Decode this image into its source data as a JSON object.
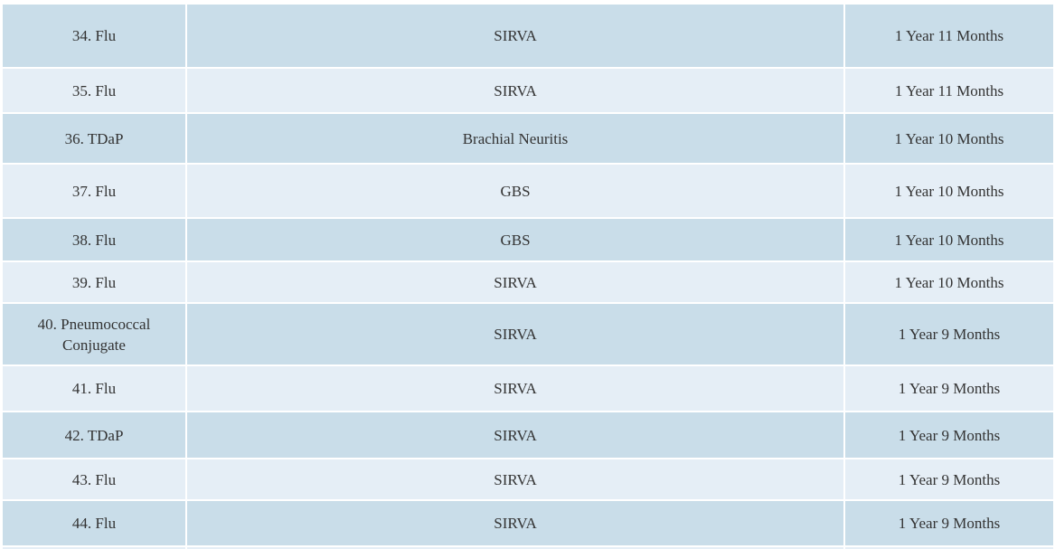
{
  "table": {
    "rows": [
      [
        "34. Flu",
        "SIRVA",
        "1 Year 11 Months"
      ],
      [
        "35. Flu",
        "SIRVA",
        "1 Year 11 Months"
      ],
      [
        "36. TDaP",
        "Brachial Neuritis",
        "1 Year 10 Months"
      ],
      [
        "37. Flu",
        "GBS",
        "1 Year 10 Months"
      ],
      [
        "38. Flu",
        "GBS",
        "1 Year 10 Months"
      ],
      [
        "39. Flu",
        "SIRVA",
        "1 Year 10 Months"
      ],
      [
        "40. Pneumococcal Conjugate",
        "SIRVA",
        "1 Year 9 Months"
      ],
      [
        "41. Flu",
        "SIRVA",
        "1 Year 9 Months"
      ],
      [
        "42. TDaP",
        "SIRVA",
        "1 Year 9 Months"
      ],
      [
        "43. Flu",
        "SIRVA",
        "1 Year 9 Months"
      ],
      [
        "44. Flu",
        "SIRVA",
        "1 Year 9 Months"
      ]
    ]
  }
}
